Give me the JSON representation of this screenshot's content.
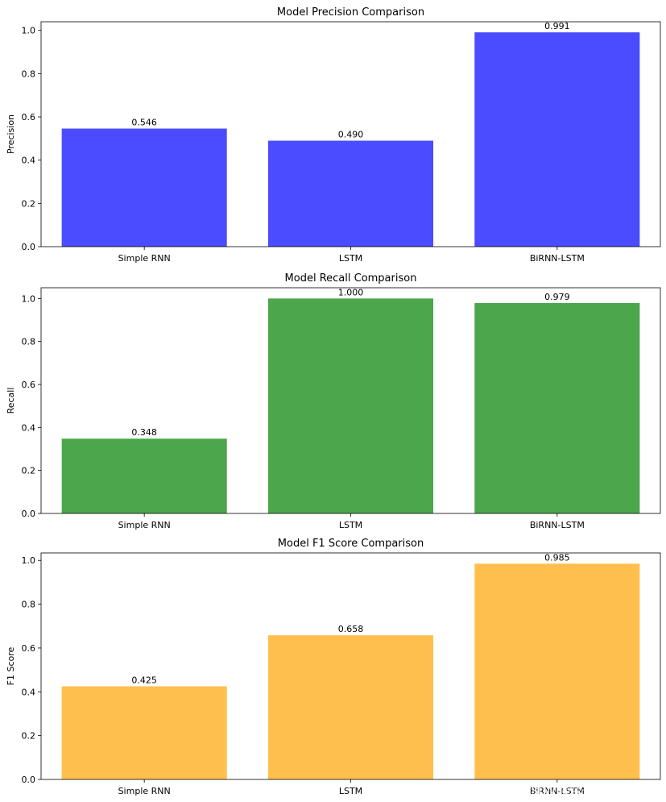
{
  "chart_data": [
    {
      "type": "bar",
      "title": "Model Precision Comparison",
      "xlabel": "",
      "ylabel": "Precision",
      "categories": [
        "Simple RNN",
        "LSTM",
        "BiRNN-LSTM"
      ],
      "values": [
        0.546,
        0.49,
        0.991
      ],
      "value_labels": [
        "0.546",
        "0.490",
        "0.991"
      ],
      "ylim": [
        0,
        1.04
      ],
      "yticks": [
        0.0,
        0.2,
        0.4,
        0.6,
        0.8,
        1.0
      ],
      "ytick_labels": [
        "0.0",
        "0.2",
        "0.4",
        "0.6",
        "0.8",
        "1.0"
      ],
      "color": "#4b4bff"
    },
    {
      "type": "bar",
      "title": "Model Recall Comparison",
      "xlabel": "",
      "ylabel": "Recall",
      "categories": [
        "Simple RNN",
        "LSTM",
        "BiRNN-LSTM"
      ],
      "values": [
        0.348,
        1.0,
        0.979
      ],
      "value_labels": [
        "0.348",
        "1.000",
        "0.979"
      ],
      "ylim": [
        0,
        1.05
      ],
      "yticks": [
        0.0,
        0.2,
        0.4,
        0.6,
        0.8,
        1.0
      ],
      "ytick_labels": [
        "0.0",
        "0.2",
        "0.4",
        "0.6",
        "0.8",
        "1.0"
      ],
      "color": "#4ca64c"
    },
    {
      "type": "bar",
      "title": "Model F1 Score Comparison",
      "xlabel": "",
      "ylabel": "F1 Score",
      "categories": [
        "Simple RNN",
        "LSTM",
        "BiRNN-LSTM"
      ],
      "values": [
        0.425,
        0.658,
        0.985
      ],
      "value_labels": [
        "0.425",
        "0.658",
        "0.985"
      ],
      "ylim": [
        0,
        1.034
      ],
      "yticks": [
        0.0,
        0.2,
        0.4,
        0.6,
        0.8,
        1.0
      ],
      "ytick_labels": [
        "0.0",
        "0.2",
        "0.4",
        "0.6",
        "0.8",
        "1.0"
      ],
      "color": "#ffbf4d"
    }
  ],
  "watermark": {
    "text": "CSDN @今天你push了吗"
  }
}
